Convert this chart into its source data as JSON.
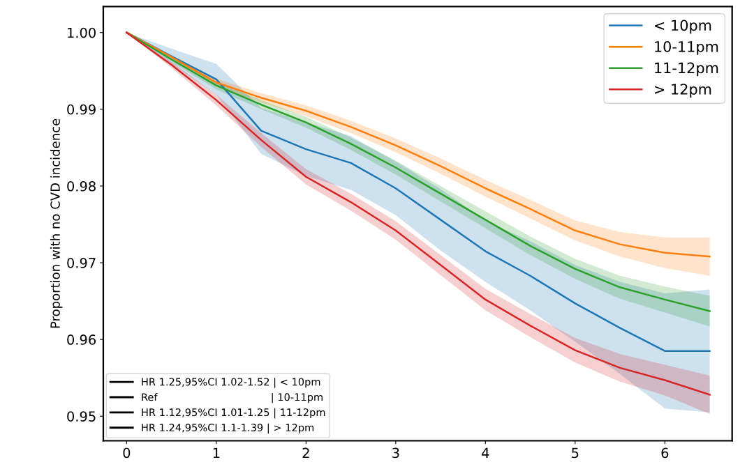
{
  "chart_data": {
    "type": "line",
    "ylabel": "Proportion with no CVD incidence",
    "x": [
      0,
      0.5,
      1,
      1.5,
      2,
      2.5,
      3,
      3.5,
      4,
      4.5,
      5,
      5.5,
      6,
      6.5
    ],
    "series": [
      {
        "name": "< 10pm",
        "color": "#1f77b4",
        "values": [
          1.0,
          0.9969,
          0.9939,
          0.9872,
          0.9848,
          0.983,
          0.9797,
          0.9756,
          0.9715,
          0.9683,
          0.9647,
          0.9615,
          0.9585,
          0.9585
        ],
        "lower": [
          1.0,
          0.9959,
          0.9919,
          0.9842,
          0.9813,
          0.9795,
          0.9762,
          0.9716,
          0.9675,
          0.9638,
          0.9597,
          0.9555,
          0.951,
          0.9505
        ],
        "upper": [
          1.0,
          0.9979,
          0.9959,
          0.9902,
          0.9883,
          0.9865,
          0.9832,
          0.9796,
          0.9755,
          0.9728,
          0.9697,
          0.9675,
          0.966,
          0.9665
        ]
      },
      {
        "name": "10-11pm",
        "color": "#ff7f0e",
        "values": [
          1.0,
          0.9968,
          0.9935,
          0.9915,
          0.9898,
          0.9877,
          0.9853,
          0.9826,
          0.9797,
          0.977,
          0.9742,
          0.9724,
          0.9713,
          0.9708
        ],
        "lower": [
          1.0,
          0.9965,
          0.993,
          0.9909,
          0.9891,
          0.9869,
          0.9844,
          0.9816,
          0.9786,
          0.9758,
          0.9729,
          0.9708,
          0.9693,
          0.9683
        ],
        "upper": [
          1.0,
          0.9971,
          0.994,
          0.9921,
          0.9905,
          0.9885,
          0.9862,
          0.9836,
          0.9808,
          0.9782,
          0.9755,
          0.974,
          0.9733,
          0.9733
        ]
      },
      {
        "name": "11-12pm",
        "color": "#2ca02c",
        "values": [
          1.0,
          0.9965,
          0.9931,
          0.9906,
          0.9883,
          0.9855,
          0.9824,
          0.979,
          0.9756,
          0.9722,
          0.9692,
          0.9668,
          0.9652,
          0.9637
        ],
        "lower": [
          1.0,
          0.9962,
          0.9926,
          0.99,
          0.9876,
          0.9847,
          0.9815,
          0.978,
          0.9745,
          0.971,
          0.9679,
          0.9653,
          0.9635,
          0.9617
        ],
        "upper": [
          1.0,
          0.9968,
          0.9936,
          0.9912,
          0.989,
          0.9863,
          0.9833,
          0.98,
          0.9767,
          0.9734,
          0.9705,
          0.9683,
          0.9669,
          0.9657
        ]
      },
      {
        "name": "> 12pm",
        "color": "#d62728",
        "values": [
          1.0,
          0.9958,
          0.9912,
          0.986,
          0.9812,
          0.9779,
          0.9742,
          0.9697,
          0.9652,
          0.9618,
          0.9586,
          0.9563,
          0.9547,
          0.9528
        ],
        "lower": [
          1.0,
          0.9954,
          0.9905,
          0.9851,
          0.9802,
          0.9768,
          0.973,
          0.9684,
          0.9638,
          0.9603,
          0.957,
          0.9545,
          0.9527,
          0.9503
        ],
        "upper": [
          1.0,
          0.9962,
          0.9919,
          0.9869,
          0.9822,
          0.979,
          0.9754,
          0.971,
          0.9666,
          0.9633,
          0.9602,
          0.9581,
          0.9567,
          0.9553
        ]
      }
    ],
    "xlim": [
      -0.26,
      6.75
    ],
    "ylim": [
      0.9468,
      1.0034
    ],
    "xticks": [
      0,
      1,
      2,
      3,
      4,
      5,
      6
    ],
    "yticks": [
      {
        "value": 0.95,
        "label": "0.95"
      },
      {
        "value": 0.96,
        "label": "0.96"
      },
      {
        "value": 0.97,
        "label": "0.97"
      },
      {
        "value": 0.98,
        "label": "0.98"
      },
      {
        "value": 0.99,
        "label": "0.99"
      },
      {
        "value": 1.0,
        "label": "1.00"
      }
    ],
    "annotations": [
      "HR 1.25,95%CI 1.02-1.52 | < 10pm",
      "Ref                                   | 10-11pm",
      "HR 1.12,95%CI 1.01-1.25 | 11-12pm",
      "HR 1.24,95%CI 1.1-1.39 | > 12pm"
    ],
    "legend": "top right",
    "grid": false
  }
}
